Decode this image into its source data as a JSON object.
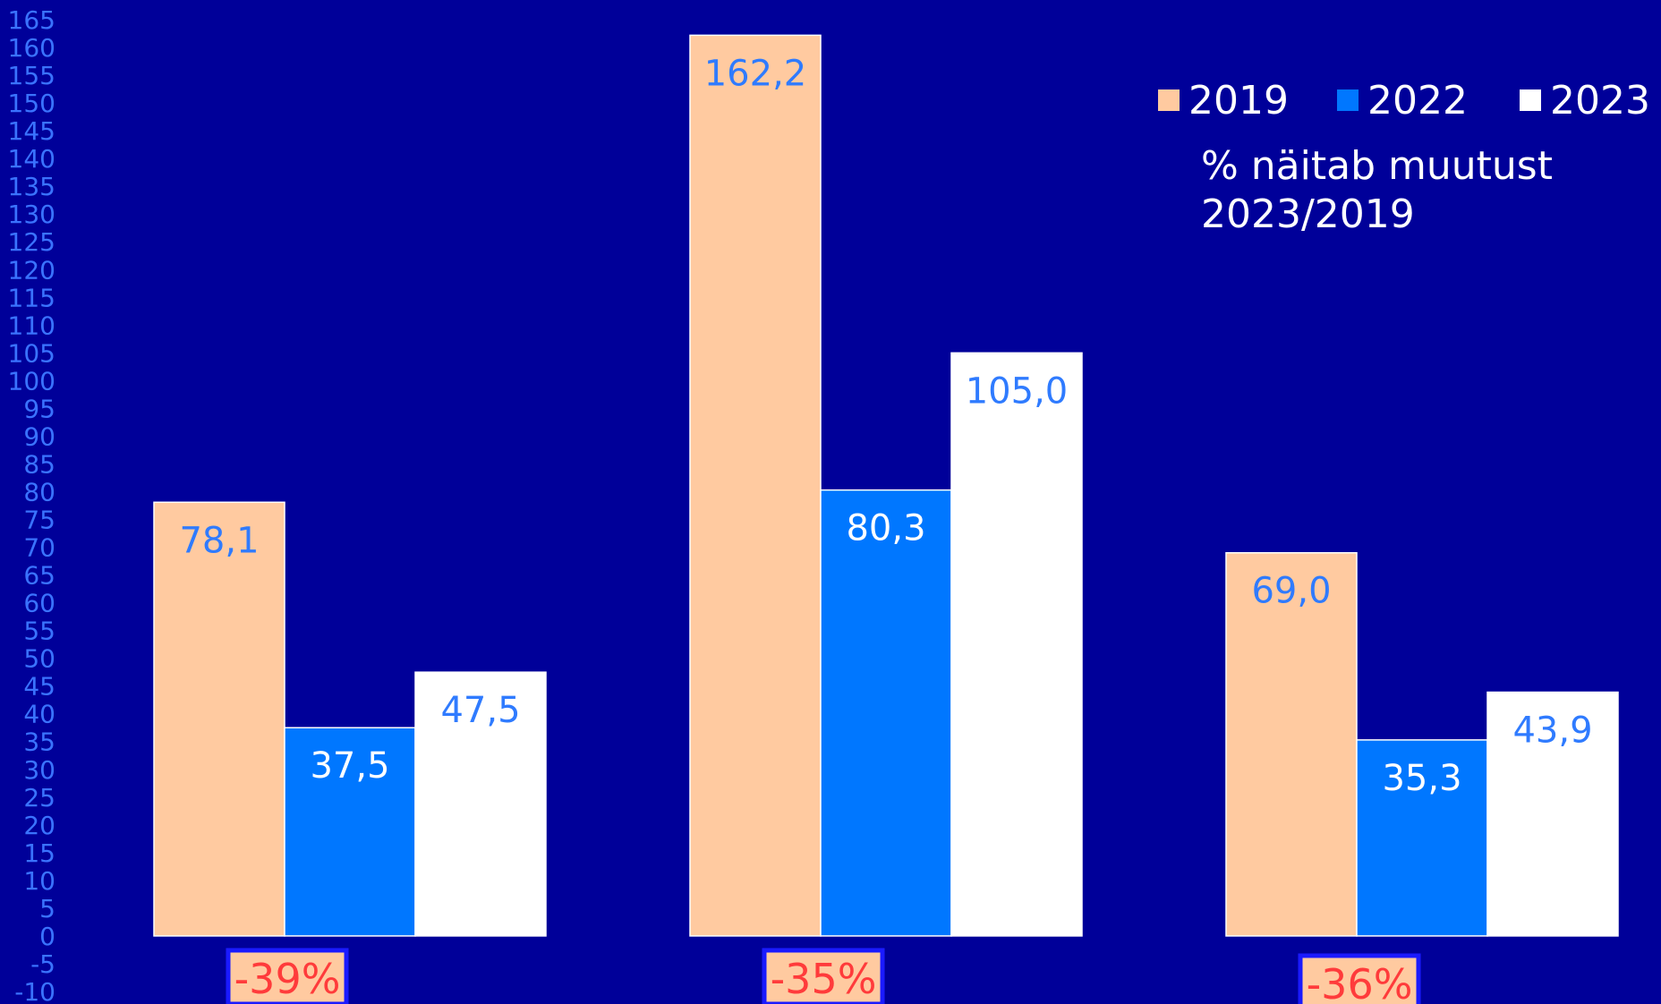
{
  "chart_data": {
    "type": "bar",
    "categories": [
      "",
      "",
      ""
    ],
    "series": [
      {
        "name": "2019",
        "color": "#ffcaa0",
        "label_color": "#2f7bff",
        "values": [
          78.1,
          162.2,
          69.0
        ],
        "labels": [
          "78,1",
          "162,2",
          "69,0"
        ]
      },
      {
        "name": "2022",
        "color": "#0077ff",
        "label_color": "#ffffff",
        "values": [
          37.5,
          80.3,
          35.3
        ],
        "labels": [
          "37,5",
          "80,3",
          "35,3"
        ]
      },
      {
        "name": "2023",
        "color": "#ffffff",
        "label_color": "#2f7bff",
        "values": [
          47.5,
          105.0,
          43.9
        ],
        "labels": [
          "47,5",
          "105,0",
          "43,9"
        ]
      }
    ],
    "ylim": [
      -10,
      165
    ],
    "ytick_step": 5,
    "ytick_labels": [
      "-10",
      "-5",
      "0",
      "5",
      "10",
      "15",
      "20",
      "25",
      "30",
      "35",
      "40",
      "45",
      "50",
      "55",
      "60",
      "65",
      "70",
      "75",
      "80",
      "85",
      "90",
      "95",
      "100",
      "105",
      "110",
      "115",
      "120",
      "125",
      "130",
      "135",
      "140",
      "145",
      "150",
      "155",
      "160",
      "165"
    ],
    "changes": [
      "-39%",
      "-35%",
      "-36%"
    ],
    "note_lines": [
      "% näitab muutust",
      "2023/2019"
    ],
    "legend_position": "top-right",
    "background": "#000099",
    "tick_color": "#3a73ff",
    "change_text_color": "#ff3b3b",
    "change_box_fill": "#ffcaa0",
    "change_box_border": "#1a1aff"
  }
}
